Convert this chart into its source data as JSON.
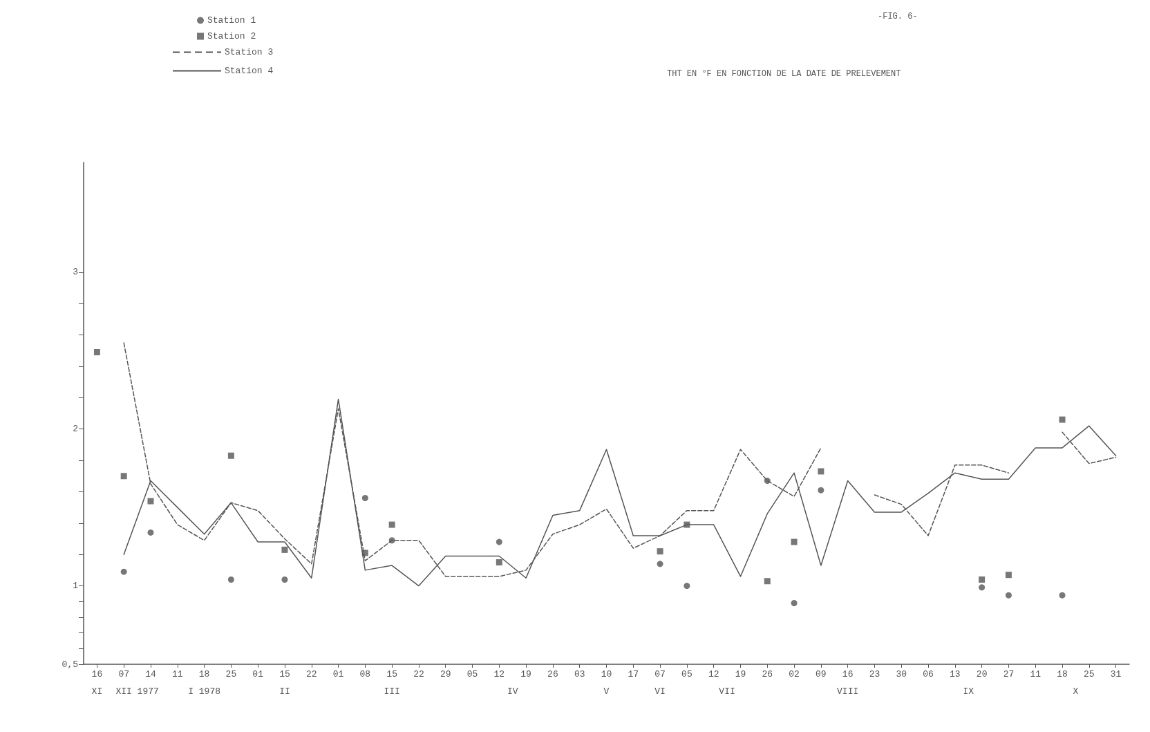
{
  "chart_data": {
    "type": "line",
    "title": "THT EN °F EN FONCTION DE LA DATE DE PRELEVEMENT",
    "annotations": [
      "-FIG. 6-",
      "XI",
      "XII 1977",
      "I 1978",
      "II",
      "III",
      "IV",
      "V",
      "VI",
      "VII",
      "VIII",
      "IX",
      "X"
    ],
    "categories": [
      "16",
      "07",
      "14",
      "11",
      "18",
      "25",
      "01",
      "15",
      "22",
      "01",
      "08",
      "15",
      "22",
      "29",
      "05",
      "12",
      "19",
      "26",
      "03",
      "10",
      "17",
      "07",
      "05",
      "12",
      "19",
      "26",
      "02",
      "09",
      "16",
      "23",
      "30",
      "06",
      "13",
      "20",
      "27",
      "11",
      "18",
      "25",
      "31"
    ],
    "series": [
      {
        "name": "Station 1",
        "type": "scatter",
        "marker": "circle",
        "color": "#555555",
        "values": [
          null,
          1.09,
          1.34,
          null,
          null,
          1.04,
          null,
          1.04,
          null,
          null,
          1.56,
          1.29,
          null,
          null,
          null,
          1.28,
          null,
          null,
          null,
          null,
          null,
          1.14,
          1.0,
          null,
          null,
          1.67,
          0.89,
          1.61,
          null,
          null,
          null,
          null,
          null,
          0.99,
          0.94,
          null,
          0.94,
          null,
          null
        ]
      },
      {
        "name": "Station 2",
        "type": "scatter",
        "marker": "square",
        "color": "#555555",
        "values": [
          2.49,
          1.7,
          1.54,
          null,
          null,
          1.83,
          null,
          1.23,
          null,
          null,
          1.21,
          1.39,
          null,
          null,
          null,
          1.15,
          null,
          null,
          null,
          null,
          null,
          1.22,
          1.39,
          null,
          null,
          1.03,
          1.28,
          1.73,
          null,
          null,
          null,
          null,
          null,
          1.04,
          1.07,
          null,
          2.06,
          null,
          null
        ]
      },
      {
        "name": "Station 3",
        "type": "line",
        "marker": "none",
        "line_style": "dashed",
        "color": "#555555",
        "values": [
          null,
          2.55,
          1.65,
          1.39,
          1.29,
          1.53,
          1.48,
          1.3,
          1.14,
          2.13,
          1.16,
          1.29,
          1.29,
          1.06,
          1.06,
          1.06,
          1.1,
          1.33,
          1.39,
          1.49,
          1.24,
          1.32,
          1.48,
          1.48,
          1.87,
          1.67,
          1.57,
          1.88,
          null,
          1.58,
          1.52,
          1.32,
          1.77,
          1.77,
          1.72,
          null,
          1.98,
          1.78,
          1.82
        ]
      },
      {
        "name": "Station 4",
        "type": "line",
        "marker": "none",
        "line_style": "solid",
        "color": "#555555",
        "values": [
          null,
          1.2,
          1.67,
          1.5,
          1.33,
          1.53,
          1.28,
          1.28,
          1.05,
          2.19,
          1.1,
          1.13,
          1.0,
          1.19,
          1.19,
          1.19,
          1.05,
          1.45,
          1.48,
          1.87,
          1.32,
          1.32,
          1.39,
          1.39,
          1.06,
          1.46,
          1.72,
          1.13,
          1.67,
          1.47,
          1.47,
          1.59,
          1.72,
          1.68,
          1.68,
          1.88,
          1.88,
          2.02,
          1.83
        ]
      }
    ],
    "ylim": [
      0.5,
      3.7
    ],
    "yticks": [
      {
        "value": 0.5,
        "label": "0,5"
      },
      {
        "value": 0.6,
        "label": null
      },
      {
        "value": 0.7,
        "label": null
      },
      {
        "value": 0.8,
        "label": null
      },
      {
        "value": 0.9,
        "label": null
      },
      1,
      {
        "value": 1.2,
        "label": null
      },
      {
        "value": 1.4,
        "label": null
      },
      {
        "value": 1.6,
        "label": null
      },
      {
        "value": 1.8,
        "label": null
      },
      2,
      {
        "value": 2.2,
        "label": null
      },
      {
        "value": 2.4,
        "label": null
      },
      {
        "value": 2.6,
        "label": null
      },
      {
        "value": 2.8,
        "label": null
      },
      3
    ],
    "grid": false,
    "legend": "top left"
  }
}
